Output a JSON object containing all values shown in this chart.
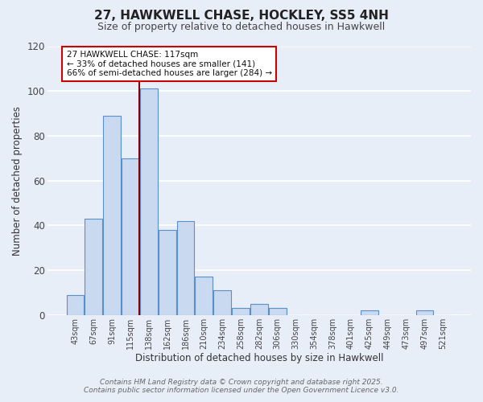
{
  "title": "27, HAWKWELL CHASE, HOCKLEY, SS5 4NH",
  "subtitle": "Size of property relative to detached houses in Hawkwell",
  "xlabel": "Distribution of detached houses by size in Hawkwell",
  "ylabel": "Number of detached properties",
  "bar_labels": [
    "43sqm",
    "67sqm",
    "91sqm",
    "115sqm",
    "138sqm",
    "162sqm",
    "186sqm",
    "210sqm",
    "234sqm",
    "258sqm",
    "282sqm",
    "306sqm",
    "330sqm",
    "354sqm",
    "378sqm",
    "401sqm",
    "425sqm",
    "449sqm",
    "473sqm",
    "497sqm",
    "521sqm"
  ],
  "bar_values": [
    9,
    43,
    89,
    70,
    101,
    38,
    42,
    17,
    11,
    3,
    5,
    3,
    0,
    0,
    0,
    0,
    2,
    0,
    0,
    2,
    0
  ],
  "bar_color": "#c8d9f0",
  "bar_edge_color": "#5b8fc9",
  "background_color": "#e8eef8",
  "grid_color": "#d0d8e8",
  "ylim": [
    0,
    120
  ],
  "yticks": [
    0,
    20,
    40,
    60,
    80,
    100,
    120
  ],
  "property_line_color": "#8b0000",
  "annotation_line1": "27 HAWKWELL CHASE: 117sqm",
  "annotation_line2": "← 33% of detached houses are smaller (141)",
  "annotation_line3": "66% of semi-detached houses are larger (284) →",
  "annotation_box_color": "#ffffff",
  "annotation_box_edge_color": "#cc0000",
  "footer_line1": "Contains HM Land Registry data © Crown copyright and database right 2025.",
  "footer_line2": "Contains public sector information licensed under the Open Government Licence v3.0.",
  "title_fontsize": 11,
  "subtitle_fontsize": 9,
  "annotation_fontsize": 7.5,
  "footer_fontsize": 6.5
}
